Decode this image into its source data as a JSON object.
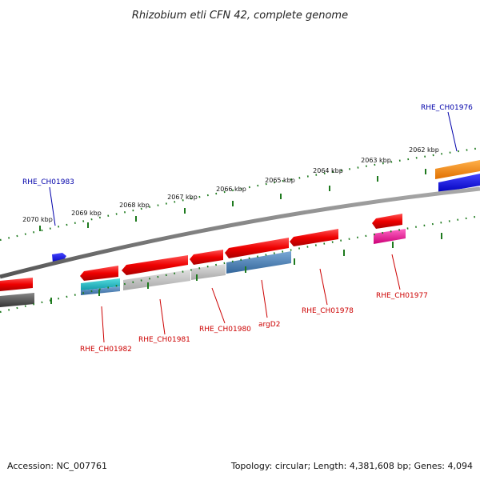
{
  "title": "Rhizobium etli CFN 42, complete genome",
  "footer": {
    "accession": "Accession: NC_007761",
    "summary": "Topology: circular; Length: 4,381,608 bp; Genes: 4,094"
  },
  "colors": {
    "backbone": "#7a7a7a",
    "tick": "#1e7a1e",
    "forward_label": "#0000aa",
    "reverse_label": "#cc0000",
    "gene_red": "#ee1111",
    "gene_orange": "#ff8800",
    "gene_blue": "#0000ee",
    "gene_magenta": "#ee2299",
    "gene_cyan": "#22bbcc",
    "gene_gray": "#bbbbbb",
    "gene_steel": "#4a7fb0",
    "gene_dark": "#555555"
  },
  "ticks": [
    "2070 kbp",
    "2069 kbp",
    "2068 kbp",
    "2067 kbp",
    "2066 kbp",
    "2065 kbp",
    "2064 kbp",
    "2063 kbp",
    "2062 kbp"
  ],
  "labels": {
    "RHE_CH01983": "RHE_CH01983",
    "RHE_CH01976": "RHE_CH01976",
    "RHE_CH01982": "RHE_CH01982",
    "RHE_CH01981": "RHE_CH01981",
    "RHE_CH01980": "RHE_CH01980",
    "argD2": "argD2",
    "RHE_CH01978": "RHE_CH01978",
    "RHE_CH01977": "RHE_CH01977"
  }
}
